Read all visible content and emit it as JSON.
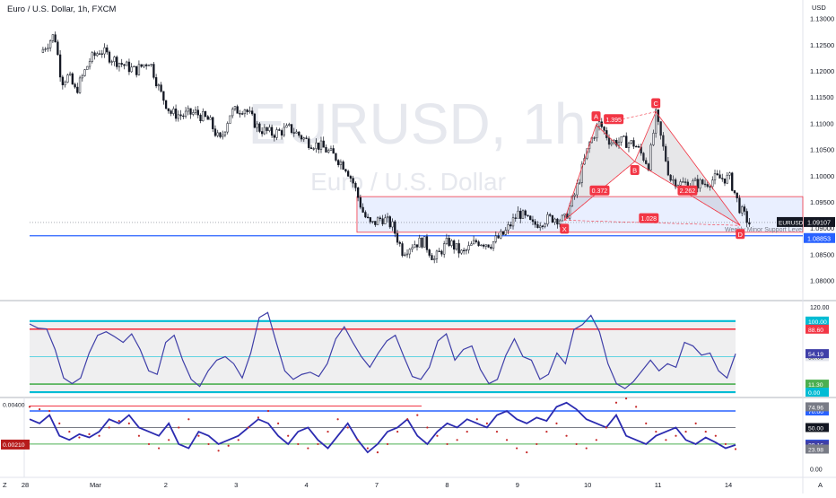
{
  "header": {
    "symbol_title": "Euro / U.S. Dollar, 1h, FXCM"
  },
  "watermark": {
    "symbol": "EURUSD, 1h",
    "description": "Euro / U.S. Dollar"
  },
  "currency": "USD",
  "corner_left": "Z",
  "corner_right": "A",
  "chart_data": [
    {
      "type": "candlestick",
      "panel": "price",
      "title": "Euro / U.S. Dollar, 1h, FXCM",
      "y_ticks": [
        1.08,
        1.085,
        1.09,
        1.095,
        1.1,
        1.105,
        1.11,
        1.115,
        1.12,
        1.125,
        1.13
      ],
      "y_tick_labels": [
        "1.08000",
        "1.08500",
        "1.09000",
        "1.09500",
        "1.10000",
        "1.10500",
        "1.11000",
        "1.11500",
        "1.12000",
        "1.12500",
        "1.13000"
      ],
      "ylim": [
        1.0765,
        1.1325
      ],
      "x_ticks": [
        {
          "day": 0,
          "label": "28"
        },
        {
          "day": 1,
          "label": "Mar"
        },
        {
          "day": 2,
          "label": "2"
        },
        {
          "day": 3,
          "label": "3"
        },
        {
          "day": 4,
          "label": "4"
        },
        {
          "day": 5,
          "label": "7"
        },
        {
          "day": 6,
          "label": "8"
        },
        {
          "day": 7,
          "label": "9"
        },
        {
          "day": 8,
          "label": "10"
        },
        {
          "day": 9,
          "label": "11"
        },
        {
          "day": 10,
          "label": "14"
        }
      ],
      "price_path": [
        [
          -0.1,
          1.1235
        ],
        [
          0.1,
          1.127
        ],
        [
          0.2,
          1.118
        ],
        [
          0.3,
          1.119
        ],
        [
          0.4,
          1.116
        ],
        [
          0.5,
          1.119
        ],
        [
          0.6,
          1.122
        ],
        [
          0.75,
          1.124
        ],
        [
          0.9,
          1.1225
        ],
        [
          1.1,
          1.121
        ],
        [
          1.25,
          1.12
        ],
        [
          1.45,
          1.122
        ],
        [
          1.6,
          1.116
        ],
        [
          1.75,
          1.112
        ],
        [
          1.9,
          1.1115
        ],
        [
          2.1,
          1.112
        ],
        [
          2.3,
          1.1105
        ],
        [
          2.45,
          1.1065
        ],
        [
          2.6,
          1.112
        ],
        [
          2.8,
          1.113
        ],
        [
          3.0,
          1.109
        ],
        [
          3.2,
          1.108
        ],
        [
          3.45,
          1.109
        ],
        [
          3.7,
          1.1065
        ],
        [
          3.9,
          1.1055
        ],
        [
          4.1,
          1.1035
        ],
        [
          4.25,
          1.1015
        ],
        [
          4.35,
          1.0985
        ],
        [
          4.5,
          1.0925
        ],
        [
          4.6,
          1.0905
        ],
        [
          4.75,
          1.092
        ],
        [
          4.9,
          1.0905
        ],
        [
          5.05,
          1.0855
        ],
        [
          5.2,
          1.087
        ],
        [
          5.35,
          1.0875
        ],
        [
          5.5,
          1.084
        ],
        [
          5.7,
          1.0875
        ],
        [
          5.9,
          1.085
        ],
        [
          6.1,
          1.0875
        ],
        [
          6.3,
          1.087
        ],
        [
          6.5,
          1.089
        ],
        [
          6.7,
          1.093
        ],
        [
          6.9,
          1.0905
        ],
        [
          7.05,
          1.0915
        ],
        [
          7.2,
          1.092
        ],
        [
          7.35,
          1.0915
        ],
        [
          7.5,
          1.0965
        ],
        [
          7.7,
          1.106
        ],
        [
          7.85,
          1.11
        ],
        [
          8.0,
          1.1065
        ],
        [
          8.2,
          1.1065
        ],
        [
          8.35,
          1.106
        ],
        [
          8.55,
          1.102
        ],
        [
          8.65,
          1.1115
        ],
        [
          8.85,
          1.0995
        ],
        [
          9.0,
          1.0985
        ],
        [
          9.2,
          1.0985
        ],
        [
          9.35,
          1.0985
        ],
        [
          9.5,
          1.0995
        ],
        [
          9.7,
          1.0995
        ],
        [
          9.85,
          1.0935
        ],
        [
          10.0,
          1.0905
        ]
      ],
      "last_price": 1.09107,
      "last_price_label": "1.09107",
      "last_price_tag": "EURUSD",
      "horizontal_line": {
        "value": 1.08853,
        "label": "1.08853"
      },
      "support_zone": {
        "top": 1.096,
        "bottom": 1.0892,
        "start_day": 4.4,
        "label": "Weekly Minor Support Level"
      },
      "harmonic_pattern": {
        "points": [
          {
            "name": "X",
            "day": 7.35,
            "price": 1.0915
          },
          {
            "name": "A",
            "day": 7.8,
            "price": 1.1097
          },
          {
            "name": "B",
            "day": 8.35,
            "price": 1.1027
          },
          {
            "name": "C",
            "day": 8.65,
            "price": 1.1122
          },
          {
            "name": "D",
            "day": 9.85,
            "price": 1.0905
          }
        ],
        "ratios": [
          {
            "label": "1.395",
            "day": 8.05,
            "price": 1.1107
          },
          {
            "label": "0.372",
            "day": 7.85,
            "price": 1.0971
          },
          {
            "label": "2.262",
            "day": 9.1,
            "price": 1.0971
          },
          {
            "label": "1.028",
            "day": 8.55,
            "price": 1.0918
          }
        ]
      }
    },
    {
      "type": "line",
      "panel": "oscillator-1",
      "ylim": [
        -5,
        125
      ],
      "y_ticks": [
        0,
        120
      ],
      "y_tick_labels": [
        "",
        "120.00"
      ],
      "levels": [
        {
          "value": 100,
          "label": "100.00",
          "color": "#00bcd4"
        },
        {
          "value": 88.6,
          "label": "88.60",
          "color": "#f23645"
        },
        {
          "value": 50,
          "label": "50.00",
          "color": "#4dd0e1"
        },
        {
          "value": 11.3,
          "label": "11.30",
          "color": "#4caf50"
        },
        {
          "value": 0,
          "label": "0.00",
          "color": "#00bcd4"
        }
      ],
      "current": {
        "value": 54.19,
        "label": "54.19"
      },
      "series": [
        {
          "values": [
            96,
            90,
            89,
            60,
            20,
            12,
            20,
            55,
            80,
            85,
            78,
            70,
            82,
            60,
            30,
            25,
            70,
            80,
            45,
            18,
            8,
            30,
            45,
            50,
            40,
            20,
            55,
            105,
            112,
            70,
            30,
            18,
            25,
            28,
            22,
            40,
            75,
            92,
            70,
            50,
            35,
            55,
            72,
            80,
            50,
            22,
            18,
            35,
            72,
            82,
            45,
            60,
            65,
            32,
            12,
            18,
            52,
            75,
            50,
            45,
            18,
            25,
            55,
            40,
            88,
            95,
            108,
            85,
            40,
            12,
            5,
            15,
            30,
            45,
            30,
            40,
            35,
            70,
            65,
            52,
            55,
            30,
            20,
            54
          ]
        }
      ]
    },
    {
      "type": "line",
      "panel": "oscillator-2",
      "ylim": [
        -8,
        83
      ],
      "y_ticks": [
        0
      ],
      "y_tick_labels": [
        "0.00"
      ],
      "left_axis_tick": "0.00400",
      "left_value_tag": "0.00210",
      "levels": [
        {
          "value": 70,
          "label": "70.00",
          "color": "#2962ff"
        },
        {
          "value": 50,
          "label": "50.00",
          "color": "#787b86"
        },
        {
          "value": 30,
          "label": "30.00",
          "color": "#4caf50"
        }
      ],
      "value_tags": [
        {
          "value": 74.96,
          "label": "74.96"
        },
        {
          "value": 29.16,
          "label": "29.16"
        },
        {
          "value": 23.98,
          "label": "23.98"
        }
      ],
      "series": [
        {
          "name": "line",
          "values": [
            60,
            55,
            65,
            40,
            35,
            42,
            38,
            45,
            60,
            55,
            65,
            50,
            45,
            40,
            55,
            30,
            25,
            45,
            40,
            30,
            35,
            40,
            50,
            60,
            55,
            40,
            30,
            45,
            50,
            35,
            25,
            40,
            55,
            35,
            20,
            30,
            45,
            50,
            60,
            40,
            30,
            45,
            55,
            50,
            60,
            55,
            50,
            65,
            70,
            60,
            55,
            62,
            58,
            75,
            80,
            72,
            60,
            55,
            50,
            65,
            40,
            35,
            30,
            40,
            45,
            50,
            35,
            30,
            38,
            32,
            25,
            29
          ]
        },
        {
          "name": "dots",
          "values": [
            75,
            72,
            70,
            55,
            45,
            38,
            42,
            40,
            50,
            58,
            55,
            40,
            30,
            25,
            35,
            50,
            60,
            40,
            30,
            22,
            28,
            35,
            50,
            62,
            70,
            55,
            40,
            30,
            25,
            30,
            45,
            60,
            50,
            35,
            25,
            20,
            30,
            45,
            60,
            65,
            50,
            40,
            30,
            35,
            45,
            60,
            55,
            45,
            35,
            25,
            20,
            30,
            45,
            55,
            40,
            30,
            25,
            35,
            50,
            80,
            85,
            75,
            55,
            45,
            35,
            40,
            45,
            55,
            45,
            40,
            30,
            24
          ]
        }
      ]
    }
  ]
}
